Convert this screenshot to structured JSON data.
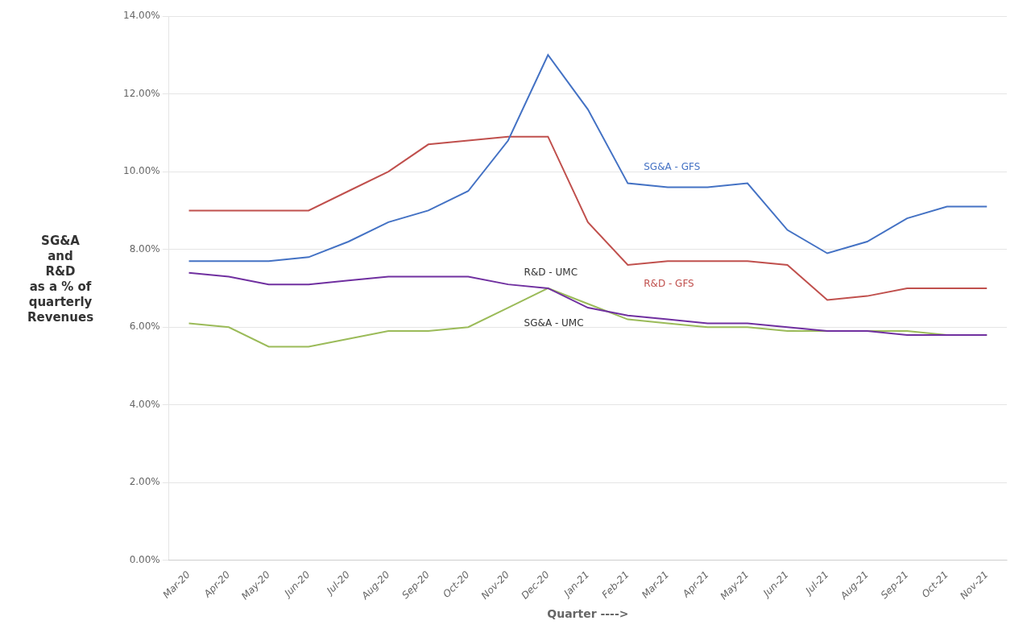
{
  "chart_data": {
    "type": "line",
    "categories": [
      "Mar-20",
      "Apr-20",
      "May-20",
      "Jun-20",
      "Jul-20",
      "Aug-20",
      "Sep-20",
      "Oct-20",
      "Nov-20",
      "Dec-20",
      "Jan-21",
      "Feb-21",
      "Mar-21",
      "Apr-21",
      "May-21",
      "Jun-21",
      "Jul-21",
      "Aug-21",
      "Sep-21",
      "Oct-21",
      "Nov-21"
    ],
    "series": [
      {
        "color": "#4472C4",
        "values": [
          0.077,
          0.077,
          0.077,
          0.078,
          0.082,
          0.087,
          0.09,
          0.095,
          0.108,
          0.13,
          0.116,
          0.097,
          0.096,
          0.096,
          0.097,
          0.085,
          0.079,
          0.082,
          0.088,
          0.091,
          0.091
        ]
      },
      {
        "color": "#C0504D",
        "values": [
          0.09,
          0.09,
          0.09,
          0.09,
          0.095,
          0.1,
          0.107,
          0.108,
          0.109,
          0.109,
          0.087,
          0.076,
          0.077,
          0.077,
          0.077,
          0.076,
          0.067,
          0.068,
          0.07,
          0.07,
          0.07
        ]
      },
      {
        "color": "#7030A0",
        "values": [
          0.074,
          0.073,
          0.071,
          0.071,
          0.072,
          0.073,
          0.073,
          0.073,
          0.071,
          0.07,
          0.065,
          0.063,
          0.062,
          0.061,
          0.061,
          0.06,
          0.059,
          0.059,
          0.058,
          0.058,
          0.058
        ]
      },
      {
        "color": "#9BBB59",
        "values": [
          0.061,
          0.06,
          0.055,
          0.055,
          0.057,
          0.059,
          0.059,
          0.06,
          0.065,
          0.07,
          0.066,
          0.062,
          0.061,
          0.06,
          0.06,
          0.059,
          0.059,
          0.059,
          0.059,
          0.058,
          0.058
        ]
      }
    ],
    "annotations": [
      {
        "text": "SG&A - GFS",
        "x": "Feb-21",
        "y": 0.101,
        "color": "#4472C4"
      },
      {
        "text": "R&D - GFS",
        "x": "Feb-21",
        "y": 0.071,
        "color": "#C0504D"
      },
      {
        "text": "R&D - UMC",
        "x": "Nov-20",
        "y": 0.074,
        "color": "#333333"
      },
      {
        "text": "SG&A - UMC",
        "x": "Nov-20",
        "y": 0.061,
        "color": "#333333"
      }
    ],
    "x_label": "Quarter ---->",
    "y_label": "SG&A\n  and\nR&D\nas a % of\n quarterly\nRevenues",
    "ylim": [
      0.0,
      0.14
    ],
    "yticks": [
      {
        "value": 0.0,
        "label": "0.00%"
      },
      {
        "value": 0.02,
        "label": "2.00%"
      },
      {
        "value": 0.04,
        "label": "4.00%"
      },
      {
        "value": 0.06,
        "label": "6.00%"
      },
      {
        "value": 0.08,
        "label": "8.00%"
      },
      {
        "value": 0.1,
        "label": "10.00%"
      },
      {
        "value": 0.12,
        "label": "12.00%"
      },
      {
        "value": 0.14,
        "label": "14.00%"
      }
    ],
    "grid": true
  }
}
